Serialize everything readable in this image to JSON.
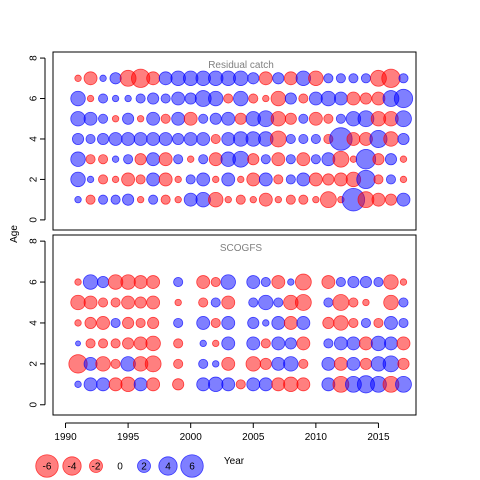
{
  "chart_data": {
    "type": "scatter",
    "kind": "bubble",
    "xlabel": "Year",
    "ylabel": "Age",
    "x_ticks": [
      1990,
      1995,
      2000,
      2005,
      2010,
      2015
    ],
    "y_ticks": [
      0,
      2,
      4,
      6,
      8
    ],
    "xlim": [
      1989,
      2018
    ],
    "ylim": [
      -0.5,
      8.3
    ],
    "colors": {
      "positive": "#0000ff",
      "negative": "#ff0000",
      "alpha": 0.5
    },
    "legend": {
      "position": "bottom-left",
      "entries": [
        {
          "label": "-6",
          "value": -6
        },
        {
          "label": "-4",
          "value": -4
        },
        {
          "label": "-2",
          "value": -2
        },
        {
          "label": "0",
          "value": 0
        },
        {
          "label": "2",
          "value": 2
        },
        {
          "label": "4",
          "value": 4
        },
        {
          "label": "6",
          "value": 6
        }
      ]
    },
    "panels": [
      {
        "title": "Residual catch",
        "years": [
          1991,
          1992,
          1993,
          1994,
          1995,
          1996,
          1997,
          1998,
          1999,
          2000,
          2001,
          2002,
          2003,
          2004,
          2005,
          2006,
          2007,
          2008,
          2009,
          2010,
          2011,
          2012,
          2013,
          2014,
          2015,
          2016,
          2017
        ],
        "ages": [
          1,
          2,
          3,
          4,
          5,
          6,
          7
        ],
        "residuals": [
          [
            0.5,
            -1,
            1,
            1,
            1.5,
            -0.5,
            1,
            -1,
            -0.5,
            2,
            2.5,
            -2.5,
            -0.5,
            -1,
            -0.5,
            -2,
            -0.5,
            -1,
            -1,
            -0.5,
            -3,
            -0.5,
            6,
            -3,
            -2,
            -1.5,
            2
          ],
          [
            2.5,
            0.5,
            -1,
            -0.5,
            -2,
            -1,
            2,
            -2,
            -0.5,
            1,
            2,
            -0.5,
            2,
            -0.5,
            -2,
            2,
            -1,
            1,
            2,
            -2,
            -1.5,
            -2,
            -2.5,
            4,
            -1,
            1,
            -0.5
          ],
          [
            2.5,
            -1,
            -1,
            0.5,
            1,
            -1.5,
            2,
            -2,
            1,
            -0.5,
            1,
            -2,
            2.5,
            3,
            -1.5,
            1,
            -2,
            1,
            -2,
            1,
            2,
            -3,
            -0.5,
            4.5,
            -1.5,
            1.5,
            -0.5
          ],
          [
            1.5,
            1,
            1.5,
            2,
            2,
            2,
            2,
            2,
            1.5,
            2,
            2,
            -1,
            2,
            2.5,
            2.5,
            2.5,
            -3,
            1,
            1,
            1,
            -1,
            6,
            -2,
            -2,
            3.5,
            -2.5,
            1.5
          ],
          [
            2.5,
            2,
            1,
            -0.5,
            1.5,
            -0.5,
            2,
            -1,
            2,
            -2,
            1,
            1.5,
            2,
            -1.5,
            2.5,
            3,
            -2.5,
            -1.5,
            1,
            -2,
            -1,
            1,
            2.5,
            3,
            -2.5,
            -2.5,
            3
          ],
          [
            2.5,
            -0.5,
            1,
            0.5,
            0.5,
            1,
            1.5,
            1,
            2,
            1.5,
            3,
            2.5,
            -1,
            2.5,
            -1,
            -0.5,
            -2.5,
            1.5,
            -1,
            2,
            2.5,
            2,
            -2,
            -1.5,
            -2,
            3,
            4
          ],
          [
            -0.5,
            -2,
            0.5,
            1.5,
            -3,
            -4,
            -2,
            2,
            2.5,
            2.5,
            2.5,
            2.5,
            2.5,
            2.5,
            1.5,
            -2,
            1.5,
            -2,
            2.5,
            -2.5,
            1,
            1,
            1,
            1,
            -3,
            -4,
            1
          ]
        ]
      },
      {
        "title": "SCOGFS",
        "years": [
          1991,
          1992,
          1993,
          1994,
          1995,
          1996,
          1997,
          1998,
          1999,
          2000,
          2001,
          2002,
          2003,
          2004,
          2005,
          2006,
          2007,
          2008,
          2009,
          2010,
          2011,
          2012,
          2013,
          2014,
          2015,
          2016,
          2017
        ],
        "ages": [
          1,
          2,
          3,
          4,
          5,
          6
        ],
        "residuals": [
          [
            0.5,
            2,
            2,
            -2,
            -2.5,
            2,
            -2,
            null,
            -1.5,
            null,
            2,
            2.5,
            2,
            -1,
            2,
            2,
            -2,
            -2.5,
            -2,
            null,
            2,
            -3,
            3,
            3.5,
            3,
            -3,
            3
          ],
          [
            -4,
            2,
            -2.5,
            -1,
            2.5,
            -2.5,
            -3,
            null,
            -1,
            null,
            1,
            0.5,
            -2,
            null,
            -2.5,
            -1.5,
            2,
            2.5,
            -1,
            null,
            2,
            -2,
            2,
            -1.5,
            2.5,
            3,
            -1.5
          ],
          [
            0.3,
            -1,
            -1,
            -1,
            -1.5,
            -2,
            -2.5,
            null,
            -1,
            null,
            0.5,
            -0.5,
            2,
            null,
            2,
            -1,
            2,
            1.5,
            -2,
            null,
            1,
            2,
            2,
            -2,
            2.5,
            2,
            -2
          ],
          [
            -0.5,
            -1.5,
            -2,
            1,
            -1.5,
            -1,
            -1.5,
            null,
            1,
            null,
            2,
            -1,
            2,
            null,
            1.5,
            0.5,
            2,
            -2,
            2,
            null,
            -1.5,
            -2.5,
            -1,
            1,
            -1,
            2,
            1
          ],
          [
            -2.5,
            -2,
            -1,
            -1,
            -2,
            -1.5,
            -2,
            null,
            -0.5,
            null,
            -1,
            1,
            -2,
            null,
            1,
            2.5,
            1,
            -2.5,
            -3,
            null,
            1,
            -3,
            -1,
            -0.5,
            null,
            -2.5,
            1
          ],
          [
            -0.5,
            2.5,
            1.5,
            -2.5,
            -2.5,
            -2,
            -2,
            null,
            1,
            null,
            -2,
            -1,
            2.5,
            null,
            2,
            1,
            -2,
            0.5,
            -3,
            null,
            -2,
            1,
            1.5,
            1.5,
            1,
            -2.5,
            -0.5
          ]
        ]
      }
    ]
  }
}
